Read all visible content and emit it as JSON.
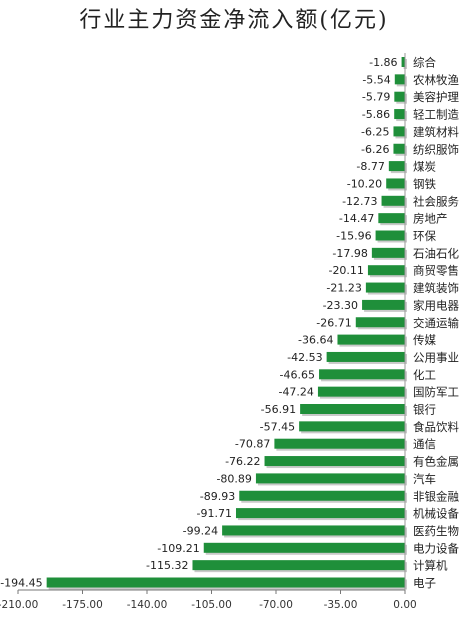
{
  "chart_data": {
    "type": "bar",
    "orientation": "horizontal",
    "title": "行业主力资金净流入额(亿元)",
    "xlabel": "",
    "ylabel": "",
    "xlim": [
      -210,
      0
    ],
    "xticks": [
      "-210.00",
      "-175.00",
      "-140.00",
      "-105.00",
      "-70.00",
      "-35.00",
      "0.00"
    ],
    "xtick_values": [
      -210,
      -175,
      -140,
      -105,
      -70,
      -35,
      0
    ],
    "bar_color": "#1f8f3a",
    "grid": false,
    "legend": "none",
    "categories": [
      "综合",
      "农林牧渔",
      "美容护理",
      "轻工制造",
      "建筑材料",
      "纺织服饰",
      "煤炭",
      "钢铁",
      "社会服务",
      "房地产",
      "环保",
      "石油石化",
      "商贸零售",
      "建筑装饰",
      "家用电器",
      "交通运输",
      "传媒",
      "公用事业",
      "化工",
      "国防军工",
      "银行",
      "食品饮料",
      "通信",
      "有色金属",
      "汽车",
      "非银金融",
      "机械设备",
      "医药生物",
      "电力设备",
      "计算机",
      "电子"
    ],
    "values": [
      -1.86,
      -5.54,
      -5.79,
      -5.86,
      -6.25,
      -6.26,
      -8.77,
      -10.2,
      -12.73,
      -14.47,
      -15.96,
      -17.98,
      -20.11,
      -21.23,
      -23.3,
      -26.71,
      -36.64,
      -42.53,
      -46.65,
      -47.24,
      -56.91,
      -57.45,
      -70.87,
      -76.22,
      -80.89,
      -89.93,
      -91.71,
      -99.24,
      -109.21,
      -115.32,
      -194.45
    ],
    "value_labels": [
      "-1.86",
      "-5.54",
      "-5.79",
      "-5.86",
      "-6.25",
      "-6.26",
      "-8.77",
      "-10.20",
      "-12.73",
      "-14.47",
      "-15.96",
      "-17.98",
      "-20.11",
      "-21.23",
      "-23.30",
      "-26.71",
      "-36.64",
      "-42.53",
      "-46.65",
      "-47.24",
      "-56.91",
      "-57.45",
      "-70.87",
      "-76.22",
      "-80.89",
      "-89.93",
      "-91.71",
      "-99.24",
      "-109.21",
      "-115.32",
      "-194.45"
    ]
  }
}
